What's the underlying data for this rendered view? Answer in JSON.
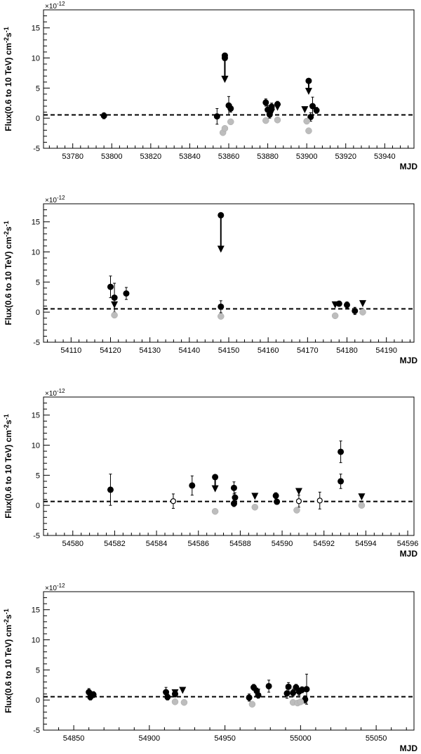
{
  "colors": {
    "axis": "#000000",
    "detection": "#000000",
    "background": "#bdbdbd",
    "reference_line": "#000000"
  },
  "chart_data": [
    {
      "type": "scatter",
      "title": "",
      "xlabel": "MJD",
      "ylabel": "Flux(0.6 to 10 TeV) cm^-2 s^-1",
      "exponent_label": "×10^-12",
      "xlim": [
        53765,
        53955
      ],
      "ylim": [
        -5,
        18
      ],
      "xticks": [
        "53780",
        "53800",
        "53820",
        "53840",
        "53860",
        "53880",
        "53900",
        "53920",
        "53940"
      ],
      "yticks": [
        "-5",
        "0",
        "5",
        "10",
        "15"
      ],
      "reference_level": 0.55,
      "series": [
        {
          "marker": "filled-circle",
          "color": "#000000",
          "points": [
            {
              "x": 53796,
              "y": 0.4,
              "err": 0.5
            },
            {
              "x": 53854,
              "y": 0.3,
              "err": 1.3
            },
            {
              "x": 53860,
              "y": 2.1,
              "err": 1.5
            },
            {
              "x": 53861,
              "y": 1.6,
              "err": 0.6
            },
            {
              "x": 53879,
              "y": 2.6,
              "err": 0.6
            },
            {
              "x": 53880,
              "y": 1.4,
              "err": 0.7
            },
            {
              "x": 53881,
              "y": 0.6,
              "err": 0.6
            },
            {
              "x": 53882,
              "y": 1.9,
              "err": 0.6
            },
            {
              "x": 53885,
              "y": 2.3,
              "err": 0.5
            },
            {
              "x": 53902,
              "y": 0.2,
              "err": 0.7
            },
            {
              "x": 53903,
              "y": 2.0,
              "err": 1.5
            },
            {
              "x": 53905,
              "y": 1.3,
              "err": 0.5
            }
          ]
        },
        {
          "marker": "grey-circle",
          "color": "#bdbdbd",
          "points": [
            {
              "x": 53857,
              "y": -2.4
            },
            {
              "x": 53858,
              "y": -1.7
            },
            {
              "x": 53861,
              "y": -0.6
            },
            {
              "x": 53879,
              "y": -0.4
            },
            {
              "x": 53885,
              "y": -0.3
            },
            {
              "x": 53900,
              "y": -0.5
            },
            {
              "x": 53901,
              "y": -2.1
            }
          ]
        },
        {
          "marker": "upper-limit",
          "color": "#000000",
          "points": [
            {
              "x": 53858,
              "y": 10.4,
              "to": 6.1
            },
            {
              "x": 53858,
              "y": 10.0,
              "to": 6.1
            },
            {
              "x": 53882,
              "y": 1.0
            },
            {
              "x": 53885,
              "y": 1.8
            },
            {
              "x": 53899,
              "y": 1.4
            },
            {
              "x": 53901,
              "y": 6.2,
              "to": 4.1
            }
          ]
        }
      ]
    },
    {
      "type": "scatter",
      "title": "",
      "xlabel": "MJD",
      "ylabel": "Flux(0.6 to 10 TeV) cm^-2 s^-1",
      "exponent_label": "×10^-12",
      "xlim": [
        54103,
        54197
      ],
      "ylim": [
        -5,
        18
      ],
      "xticks": [
        "54110",
        "54120",
        "54130",
        "54140",
        "54150",
        "54160",
        "54170",
        "54180",
        "54190"
      ],
      "yticks": [
        "-5",
        "0",
        "5",
        "10",
        "15"
      ],
      "reference_level": 0.55,
      "series": [
        {
          "marker": "filled-circle",
          "color": "#000000",
          "points": [
            {
              "x": 54120,
              "y": 4.2,
              "err": 1.8
            },
            {
              "x": 54121,
              "y": 2.4,
              "err": 2.4
            },
            {
              "x": 54124,
              "y": 3.1,
              "err": 1.0
            },
            {
              "x": 54148,
              "y": 0.9,
              "err": 1.0
            },
            {
              "x": 54178,
              "y": 1.4,
              "err": 0.4
            },
            {
              "x": 54180,
              "y": 1.2,
              "err": 0.5
            },
            {
              "x": 54182,
              "y": 0.2,
              "err": 0.6
            }
          ]
        },
        {
          "marker": "grey-circle",
          "color": "#bdbdbd",
          "points": [
            {
              "x": 54121,
              "y": -0.5
            },
            {
              "x": 54148,
              "y": -0.7
            },
            {
              "x": 54177,
              "y": -0.6
            },
            {
              "x": 54184,
              "y": 0.0
            }
          ]
        },
        {
          "marker": "upper-limit",
          "color": "#000000",
          "points": [
            {
              "x": 54121,
              "y": 1.2
            },
            {
              "x": 54148,
              "y": 16.1,
              "to": 10.1
            },
            {
              "x": 54177,
              "y": 1.2
            },
            {
              "x": 54184,
              "y": 1.4
            }
          ]
        }
      ]
    },
    {
      "type": "scatter",
      "title": "",
      "xlabel": "MJD",
      "ylabel": "Flux(0.6 to 10 TeV) cm^-2 s^-1",
      "exponent_label": "×10^-12",
      "xlim": [
        54578.6,
        54596.3
      ],
      "ylim": [
        -5,
        18
      ],
      "xticks": [
        "54580",
        "54582",
        "54584",
        "54586",
        "54588",
        "54590",
        "54592",
        "54594",
        "54596"
      ],
      "yticks": [
        "-5",
        "0",
        "5",
        "10",
        "15"
      ],
      "reference_level": 0.65,
      "series": [
        {
          "marker": "filled-circle",
          "color": "#000000",
          "points": [
            {
              "x": 54581.8,
              "y": 2.6,
              "err": 2.6
            },
            {
              "x": 54585.7,
              "y": 3.3,
              "err": 1.6
            },
            {
              "x": 54587.7,
              "y": 2.9,
              "err": 1.0
            },
            {
              "x": 54587.75,
              "y": 1.3,
              "err": 0.8
            },
            {
              "x": 54587.7,
              "y": 0.3,
              "err": 0.5
            },
            {
              "x": 54589.7,
              "y": 1.6,
              "err": 0.5
            },
            {
              "x": 54589.75,
              "y": 0.6,
              "err": 0.4
            },
            {
              "x": 54592.8,
              "y": 8.9,
              "err": 1.8
            },
            {
              "x": 54592.8,
              "y": 4.0,
              "err": 1.2
            }
          ]
        },
        {
          "marker": "open-circle",
          "color": "#000000",
          "points": [
            {
              "x": 54584.8,
              "y": 0.7,
              "err": 1.2
            },
            {
              "x": 54590.8,
              "y": 0.7,
              "err": 1.0
            },
            {
              "x": 54591.8,
              "y": 0.8,
              "err": 1.4
            }
          ]
        },
        {
          "marker": "grey-circle",
          "color": "#bdbdbd",
          "points": [
            {
              "x": 54586.8,
              "y": -1.0
            },
            {
              "x": 54588.7,
              "y": -0.3
            },
            {
              "x": 54590.7,
              "y": -0.8
            },
            {
              "x": 54593.8,
              "y": 0.0
            }
          ]
        },
        {
          "marker": "upper-limit",
          "color": "#000000",
          "points": [
            {
              "x": 54586.8,
              "y": 4.7,
              "to": 2.4
            },
            {
              "x": 54588.7,
              "y": 1.5
            },
            {
              "x": 54590.8,
              "y": 2.3
            },
            {
              "x": 54593.8,
              "y": 1.4
            }
          ]
        }
      ]
    },
    {
      "type": "scatter",
      "title": "",
      "xlabel": "MJD",
      "ylabel": "Flux(0.6 to 10 TeV) cm^-2 s^-1",
      "exponent_label": "×10^-12",
      "xlim": [
        54830,
        55075
      ],
      "ylim": [
        -5,
        18
      ],
      "xticks": [
        "54850",
        "54900",
        "54950",
        "55000",
        "55050"
      ],
      "yticks": [
        "-5",
        "0",
        "5",
        "10",
        "15"
      ],
      "reference_level": 0.55,
      "series": [
        {
          "marker": "filled-circle",
          "color": "#000000",
          "points": [
            {
              "x": 54860,
              "y": 1.3,
              "err": 0.6
            },
            {
              "x": 54861,
              "y": 0.5,
              "err": 0.5
            },
            {
              "x": 54863,
              "y": 0.9,
              "err": 0.5
            },
            {
              "x": 54911,
              "y": 1.3,
              "err": 0.8
            },
            {
              "x": 54912,
              "y": 0.5,
              "err": 0.5
            },
            {
              "x": 54917,
              "y": 1.0,
              "err": 0.5
            },
            {
              "x": 54966,
              "y": 0.4,
              "err": 0.6
            },
            {
              "x": 54969,
              "y": 2.1,
              "err": 0.5
            },
            {
              "x": 54971,
              "y": 1.5,
              "err": 0.5
            },
            {
              "x": 54972,
              "y": 0.8,
              "err": 0.5
            },
            {
              "x": 54979,
              "y": 2.3,
              "err": 1.0
            },
            {
              "x": 54991,
              "y": 1.1,
              "err": 0.8
            },
            {
              "x": 54992,
              "y": 2.2,
              "err": 0.7
            },
            {
              "x": 54995,
              "y": 1.2,
              "err": 0.6
            },
            {
              "x": 54997,
              "y": 2.1,
              "err": 0.5
            },
            {
              "x": 54999,
              "y": 1.4,
              "err": 0.6
            },
            {
              "x": 55001,
              "y": 1.7,
              "err": 0.5
            },
            {
              "x": 55003,
              "y": 0.1,
              "err": 0.6
            },
            {
              "x": 55004,
              "y": 1.8,
              "err": 2.5
            }
          ]
        },
        {
          "marker": "grey-circle",
          "color": "#bdbdbd",
          "points": [
            {
              "x": 54917,
              "y": -0.3
            },
            {
              "x": 54923,
              "y": -0.4
            },
            {
              "x": 54968,
              "y": -0.7
            },
            {
              "x": 54995,
              "y": -0.4
            },
            {
              "x": 54998,
              "y": -0.5
            },
            {
              "x": 55000,
              "y": -0.3
            }
          ]
        },
        {
          "marker": "upper-limit",
          "color": "#000000",
          "points": [
            {
              "x": 54917,
              "y": 1.2
            },
            {
              "x": 54922,
              "y": 1.6
            },
            {
              "x": 54971,
              "y": 1.3
            }
          ]
        }
      ]
    }
  ]
}
